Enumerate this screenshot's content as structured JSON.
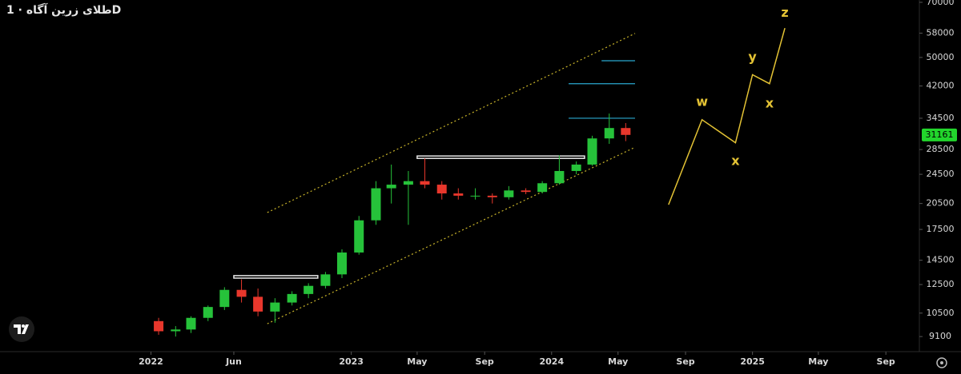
{
  "chart_data": {
    "type": "candlestick",
    "title": "طلای زرین آگاه · 1D",
    "log": true,
    "grid": false,
    "up_color": "#26c23a",
    "down_color": "#e8372c",
    "x": [
      "2022-01",
      "2022-02",
      "2022-03",
      "2022-04",
      "2022-05",
      "2022-06",
      "2022-07",
      "2022-08",
      "2022-09",
      "2022-10",
      "2022-11",
      "2022-12",
      "2023-01",
      "2023-02",
      "2023-03",
      "2023-04",
      "2023-05",
      "2023-06",
      "2023-07",
      "2023-08",
      "2023-09",
      "2023-10",
      "2023-11",
      "2023-12",
      "2024-01",
      "2024-02",
      "2024-03",
      "2024-04",
      "2024-05"
    ],
    "open": [
      10000,
      9400,
      9500,
      10200,
      10900,
      12100,
      11600,
      10600,
      11200,
      11800,
      12400,
      13300,
      15200,
      18500,
      22500,
      23000,
      23500,
      23000,
      21800,
      21500,
      21500,
      21300,
      22200,
      22000,
      23200,
      25000,
      26000,
      30500,
      32500
    ],
    "high": [
      10200,
      9700,
      10300,
      11000,
      12300,
      12900,
      12200,
      11500,
      12000,
      12600,
      13500,
      15500,
      19000,
      23500,
      26000,
      25000,
      27000,
      23500,
      22500,
      22500,
      21800,
      22800,
      22500,
      23500,
      27500,
      26500,
      31000,
      35500,
      33500
    ],
    "low": [
      9200,
      9100,
      9300,
      10000,
      10700,
      11200,
      10300,
      9900,
      11000,
      11500,
      12200,
      13000,
      15000,
      18000,
      20500,
      18000,
      22500,
      21000,
      21000,
      21000,
      20500,
      21000,
      21700,
      21800,
      23000,
      24500,
      25800,
      29500,
      30000
    ],
    "close": [
      9400,
      9500,
      10200,
      10900,
      12100,
      11600,
      10600,
      11200,
      11800,
      12400,
      13300,
      15200,
      18500,
      22500,
      23000,
      23500,
      23000,
      21800,
      21500,
      21500,
      21300,
      22200,
      22000,
      23200,
      25000,
      26000,
      30500,
      32500,
      31161
    ],
    "last_price": 31161,
    "last_price_color": "#22d62c",
    "xlim": [
      "2021-04",
      "2025-11"
    ],
    "xticks": [
      {
        "value": "2022-01",
        "label": "2022"
      },
      {
        "value": "2022-06",
        "label": "Jun"
      },
      {
        "value": "2023-01",
        "label": "2023"
      },
      {
        "value": "2023-05",
        "label": "May"
      },
      {
        "value": "2023-09",
        "label": "Sep"
      },
      {
        "value": "2024-01",
        "label": "2024"
      },
      {
        "value": "2024-05",
        "label": "May"
      },
      {
        "value": "2024-09",
        "label": "Sep"
      },
      {
        "value": "2025-01",
        "label": "2025"
      },
      {
        "value": "2025-05",
        "label": "May"
      },
      {
        "value": "2025-09",
        "label": "Sep"
      }
    ],
    "ylim": [
      8300,
      71000
    ],
    "yticks": [
      9100,
      10500,
      12500,
      14500,
      17500,
      20500,
      24500,
      28500,
      34500,
      42000,
      50000,
      58000,
      70000
    ],
    "trend_lines": {
      "color": "#c9b42a",
      "lines": [
        {
          "x": [
            "2022-08",
            "2024-06"
          ],
          "values": [
            19400,
            57900
          ]
        },
        {
          "x": [
            "2022-08",
            "2024-06"
          ],
          "values": [
            9840,
            28900
          ]
        }
      ]
    },
    "zones": {
      "color": "#e8e8e8",
      "boxes": [
        {
          "x": [
            "2022-06",
            "2022-11"
          ],
          "values": [
            13000,
            13200
          ]
        },
        {
          "x": [
            "2023-05",
            "2024-03"
          ],
          "values": [
            27000,
            27400
          ]
        }
      ]
    },
    "levels": {
      "color": "#2aa8d0",
      "lines": [
        {
          "x": [
            "2024-04",
            "2024-06"
          ],
          "value": 49000
        },
        {
          "x": [
            "2024-02",
            "2024-06"
          ],
          "value": 42600
        },
        {
          "x": [
            "2024-02",
            "2024-06"
          ],
          "value": 34500
        }
      ]
    },
    "wave": {
      "color": "#e3c234",
      "x": [
        "2024-08",
        "2024-10",
        "2024-12",
        "2025-01",
        "2025-02",
        "2025-03"
      ],
      "values": [
        20350,
        34200,
        29700,
        45000,
        42600,
        59800
      ]
    },
    "annotations": {
      "color": "#e3c234",
      "items": [
        {
          "text": "w",
          "x": "2024-10",
          "y": 38000
        },
        {
          "text": "x",
          "x": "2024-12",
          "y": 26500
        },
        {
          "text": "y",
          "x": "2025-01",
          "y": 50000
        },
        {
          "text": "x",
          "x": "2025-02",
          "y": 37700
        },
        {
          "text": "z",
          "x": "2025-03",
          "y": 65500
        }
      ]
    }
  }
}
